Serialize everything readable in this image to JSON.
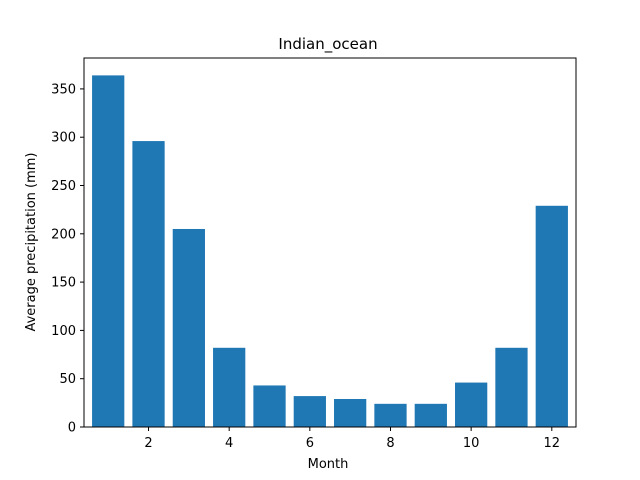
{
  "chart_data": {
    "type": "bar",
    "title": "Indian_ocean",
    "xlabel": "Month",
    "ylabel": "Average precipitation (mm)",
    "x": [
      1,
      2,
      3,
      4,
      5,
      6,
      7,
      8,
      9,
      10,
      11,
      12
    ],
    "values": [
      364,
      296,
      205,
      82,
      43,
      32,
      29,
      24,
      24,
      46,
      82,
      229
    ],
    "xlim": [
      0.4,
      12.6
    ],
    "ylim": [
      0,
      382
    ],
    "xticks": [
      2,
      4,
      6,
      8,
      10,
      12
    ],
    "yticks": [
      0,
      50,
      100,
      150,
      200,
      250,
      300,
      350
    ],
    "bar_color": "#1f77b4",
    "grid": false,
    "legend": "none"
  }
}
